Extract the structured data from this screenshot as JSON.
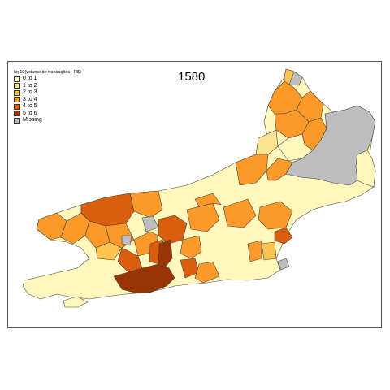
{
  "map": {
    "title": "1580",
    "legend": {
      "title": "log10(volume de transações - R$)",
      "items": [
        {
          "label": "0 to 1",
          "color": "#fff7bc"
        },
        {
          "label": "1 to 2",
          "color": "#fee391"
        },
        {
          "label": "2 to 3",
          "color": "#fec44f"
        },
        {
          "label": "3 to 4",
          "color": "#fb9a29"
        },
        {
          "label": "4 to 5",
          "color": "#d95f0e"
        },
        {
          "label": "5 to 6",
          "color": "#993404"
        },
        {
          "label": "Missing",
          "color": "#bebebe"
        }
      ]
    }
  }
}
